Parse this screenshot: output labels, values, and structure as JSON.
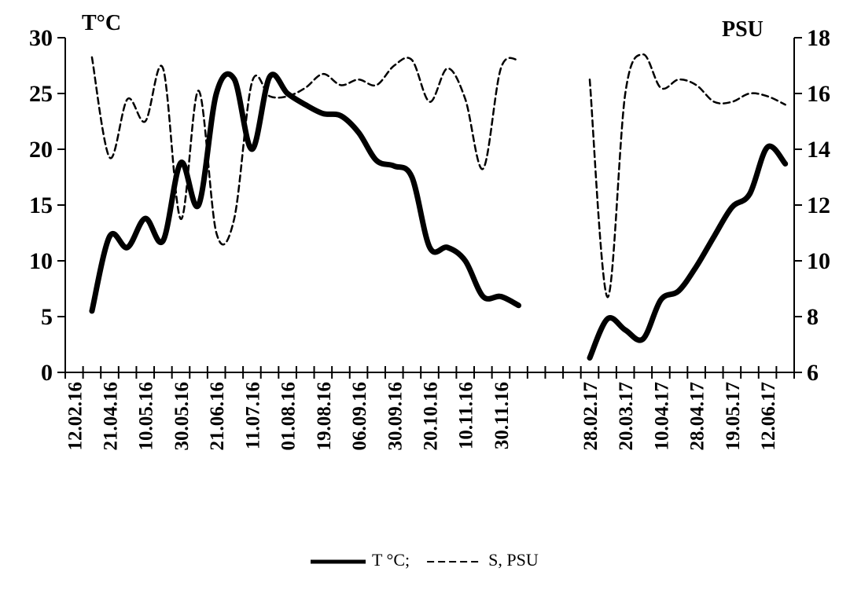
{
  "chart_data": {
    "type": "line",
    "y_label": "T°C",
    "y2_label": "PSU",
    "categories": [
      "12.02.16",
      null,
      "21.04.16",
      null,
      "10.05.16",
      null,
      "30.05.16",
      null,
      "21.06.16",
      null,
      "11.07.16",
      null,
      "01.08.16",
      null,
      "19.08.16",
      null,
      "06.09.16",
      null,
      "30.09.16",
      null,
      "20.10.16",
      null,
      "10.11.16",
      null,
      "30.11.16",
      null,
      null,
      null,
      null,
      "28.02.17",
      null,
      "20.03.17",
      null,
      "10.04.17",
      null,
      "28.04.17",
      null,
      "19.05.17",
      null,
      "12.06.17",
      null
    ],
    "series": [
      {
        "name": "T °C;",
        "color": "#000000",
        "style": "solid",
        "values": [
          null,
          5.5,
          12.2,
          11.2,
          13.8,
          11.8,
          18.8,
          15.0,
          25.0,
          26.3,
          20.0,
          26.5,
          25.0,
          24.0,
          23.2,
          23.0,
          21.5,
          19.0,
          18.5,
          17.5,
          11.2,
          11.2,
          10.0,
          6.8,
          6.8,
          6.0,
          null,
          null,
          null,
          1.3,
          4.8,
          3.8,
          3.0,
          6.5,
          7.3,
          9.5,
          12.2,
          14.8,
          16.0,
          20.2,
          18.7
        ]
      },
      {
        "name": "S, PSU",
        "color": "#000000",
        "style": "dashed",
        "axis": "y2",
        "values": [
          null,
          17.3,
          13.7,
          15.8,
          15.0,
          16.9,
          11.5,
          16.1,
          11.0,
          11.5,
          16.4,
          15.9,
          15.9,
          16.2,
          16.7,
          16.3,
          16.5,
          16.3,
          17.0,
          17.2,
          15.7,
          16.9,
          15.8,
          13.3,
          16.9,
          17.2,
          null,
          null,
          null,
          16.5,
          8.7,
          16.0,
          17.4,
          16.2,
          16.5,
          16.3,
          15.7,
          15.7,
          16.0,
          15.9,
          15.6
        ]
      }
    ],
    "ylim": [
      0,
      30
    ],
    "yticks": [
      0,
      5,
      10,
      15,
      20,
      25,
      30
    ],
    "y2lim": [
      6,
      18
    ],
    "y2ticks": [
      6,
      8,
      10,
      12,
      14,
      16,
      18
    ]
  }
}
